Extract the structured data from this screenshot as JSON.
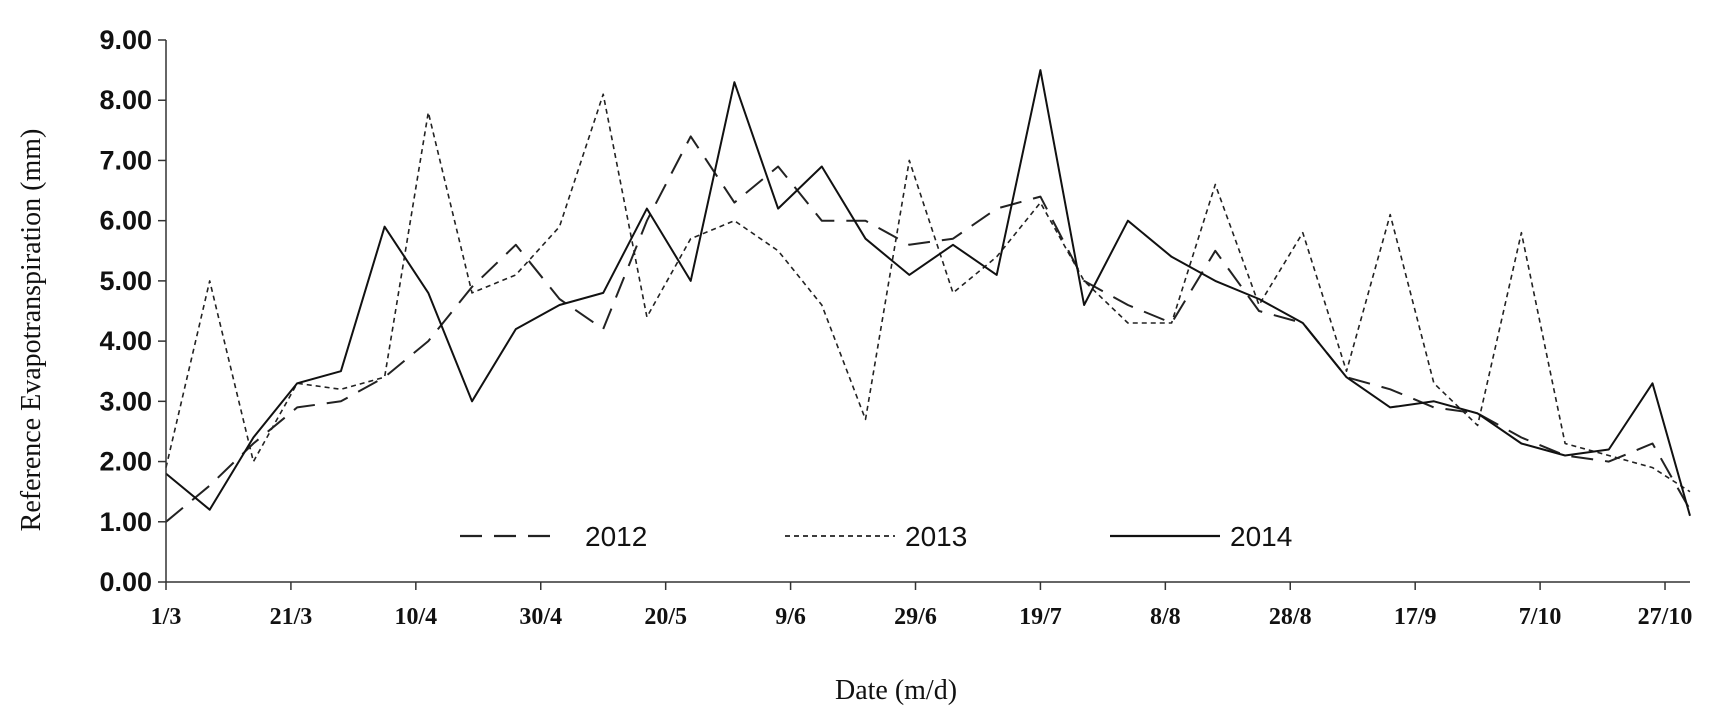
{
  "chart_data": {
    "type": "line",
    "title": "",
    "xlabel": "Date (m/d)",
    "ylabel": "Reference Evapotranspiration (mm)",
    "x_range": [
      "1/3",
      "31/10"
    ],
    "ylim": [
      0,
      9
    ],
    "y_ticks": [
      "0.00",
      "1.00",
      "2.00",
      "3.00",
      "4.00",
      "5.00",
      "6.00",
      "7.00",
      "8.00",
      "9.00"
    ],
    "x_ticks": [
      "1/3",
      "21/3",
      "10/4",
      "30/4",
      "20/5",
      "9/6",
      "29/6",
      "19/7",
      "8/8",
      "28/8",
      "17/9",
      "7/10",
      "27/10"
    ],
    "grid": false,
    "legend_position": "bottom-center",
    "series": [
      {
        "name": "2012",
        "style": "long-dash",
        "color": "#222222",
        "x": [
          "1/3",
          "8/3",
          "15/3",
          "22/3",
          "29/3",
          "5/4",
          "12/4",
          "19/4",
          "26/4",
          "3/5",
          "10/5",
          "17/5",
          "24/5",
          "31/5",
          "7/6",
          "14/6",
          "21/6",
          "28/6",
          "5/7",
          "12/7",
          "19/7",
          "26/7",
          "2/8",
          "9/8",
          "16/8",
          "23/8",
          "30/8",
          "6/9",
          "13/9",
          "20/9",
          "27/9",
          "4/10",
          "11/10",
          "18/10",
          "25/10",
          "31/10"
        ],
        "values": [
          1.0,
          1.6,
          2.3,
          2.9,
          3.0,
          3.4,
          4.0,
          4.9,
          5.6,
          4.7,
          4.2,
          6.0,
          7.4,
          6.3,
          6.9,
          6.0,
          6.0,
          5.6,
          5.7,
          6.2,
          6.4,
          5.0,
          4.6,
          4.3,
          5.5,
          4.5,
          4.3,
          3.4,
          3.2,
          2.9,
          2.8,
          2.4,
          2.1,
          2.0,
          2.3,
          1.2
        ]
      },
      {
        "name": "2013",
        "style": "short-dash",
        "color": "#222222",
        "x": [
          "1/3",
          "8/3",
          "15/3",
          "22/3",
          "29/3",
          "5/4",
          "12/4",
          "19/4",
          "26/4",
          "3/5",
          "10/5",
          "17/5",
          "24/5",
          "31/5",
          "7/6",
          "14/6",
          "21/6",
          "28/6",
          "5/7",
          "12/7",
          "19/7",
          "26/7",
          "2/8",
          "9/8",
          "16/8",
          "23/8",
          "30/8",
          "6/9",
          "13/9",
          "20/9",
          "27/9",
          "4/10",
          "11/10",
          "18/10",
          "25/10",
          "31/10"
        ],
        "values": [
          1.9,
          5.0,
          2.0,
          3.3,
          3.2,
          3.4,
          7.8,
          4.8,
          5.1,
          5.9,
          8.1,
          4.4,
          5.7,
          6.0,
          5.5,
          4.6,
          2.7,
          7.0,
          4.8,
          5.4,
          6.3,
          5.0,
          4.3,
          4.3,
          6.6,
          4.6,
          5.8,
          3.5,
          6.1,
          3.3,
          2.6,
          5.8,
          2.3,
          2.1,
          1.9,
          1.5
        ]
      },
      {
        "name": "2014",
        "style": "solid",
        "color": "#111111",
        "x": [
          "1/3",
          "8/3",
          "15/3",
          "22/3",
          "29/3",
          "5/4",
          "12/4",
          "19/4",
          "26/4",
          "3/5",
          "10/5",
          "17/5",
          "24/5",
          "31/5",
          "7/6",
          "14/6",
          "21/6",
          "28/6",
          "5/7",
          "12/7",
          "19/7",
          "26/7",
          "2/8",
          "9/8",
          "16/8",
          "23/8",
          "30/8",
          "6/9",
          "13/9",
          "20/9",
          "27/9",
          "4/10",
          "11/10",
          "18/10",
          "25/10",
          "31/10"
        ],
        "values": [
          1.8,
          1.2,
          2.4,
          3.3,
          3.5,
          5.9,
          4.8,
          3.0,
          4.2,
          4.6,
          4.8,
          6.2,
          5.0,
          8.3,
          6.2,
          6.9,
          5.7,
          5.1,
          5.6,
          5.1,
          8.5,
          4.6,
          6.0,
          5.4,
          5.0,
          4.7,
          4.3,
          3.4,
          2.9,
          3.0,
          2.8,
          2.3,
          2.1,
          2.2,
          3.3,
          1.1
        ]
      }
    ]
  }
}
